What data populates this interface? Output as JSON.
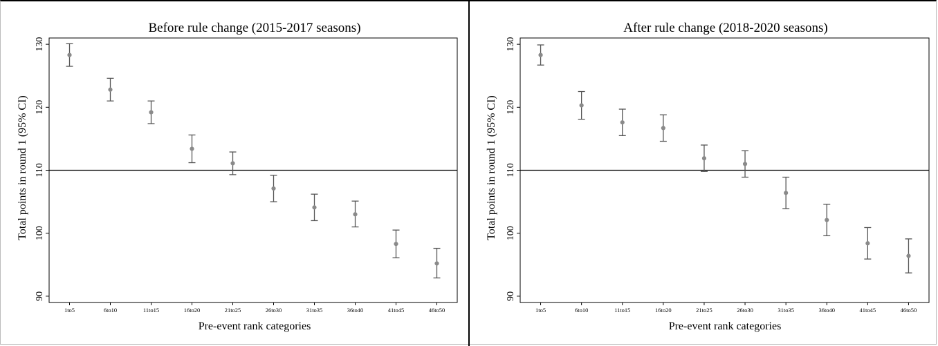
{
  "chart_data": [
    {
      "type": "scatter",
      "title": "Before rule change (2015-2017 seasons)",
      "xlabel": "Pre-event rank categories",
      "ylabel": "Total points in round 1 (95% CI)",
      "ylim": [
        89,
        131
      ],
      "yticks": [
        90,
        100,
        110,
        120,
        130
      ],
      "reference_line": 110,
      "categories": [
        "1to5",
        "6to10",
        "11to15",
        "16to20",
        "21to25",
        "26to30",
        "31to35",
        "36to40",
        "41to45",
        "46to50"
      ],
      "values": [
        128.3,
        122.8,
        119.2,
        113.4,
        111.1,
        107.1,
        104.1,
        103.0,
        98.3,
        95.2
      ],
      "ci_low": [
        126.5,
        121.0,
        117.4,
        111.2,
        109.3,
        105.0,
        102.0,
        101.0,
        96.1,
        92.9
      ],
      "ci_high": [
        130.1,
        124.6,
        121.0,
        115.6,
        112.9,
        109.2,
        106.2,
        105.1,
        100.5,
        97.6
      ],
      "grid": false,
      "color": "#8a8a8a"
    },
    {
      "type": "scatter",
      "title": "After rule change (2018-2020 seasons)",
      "xlabel": "Pre-event rank categories",
      "ylabel": "Total points in round 1 (95% CI)",
      "ylim": [
        89,
        131
      ],
      "yticks": [
        90,
        100,
        110,
        120,
        130
      ],
      "reference_line": 110,
      "categories": [
        "1to5",
        "6to10",
        "11to15",
        "16to20",
        "21to25",
        "26to30",
        "31to35",
        "36to40",
        "41to45",
        "46to50"
      ],
      "values": [
        128.3,
        120.3,
        117.6,
        116.7,
        111.9,
        111.0,
        106.4,
        102.1,
        98.4,
        96.4
      ],
      "ci_low": [
        126.7,
        118.1,
        115.5,
        114.6,
        109.8,
        108.9,
        103.9,
        99.6,
        95.9,
        93.7
      ],
      "ci_high": [
        129.9,
        122.5,
        119.7,
        118.8,
        114.0,
        113.1,
        108.9,
        104.6,
        100.9,
        99.1
      ],
      "grid": false,
      "color": "#8a8a8a"
    }
  ]
}
